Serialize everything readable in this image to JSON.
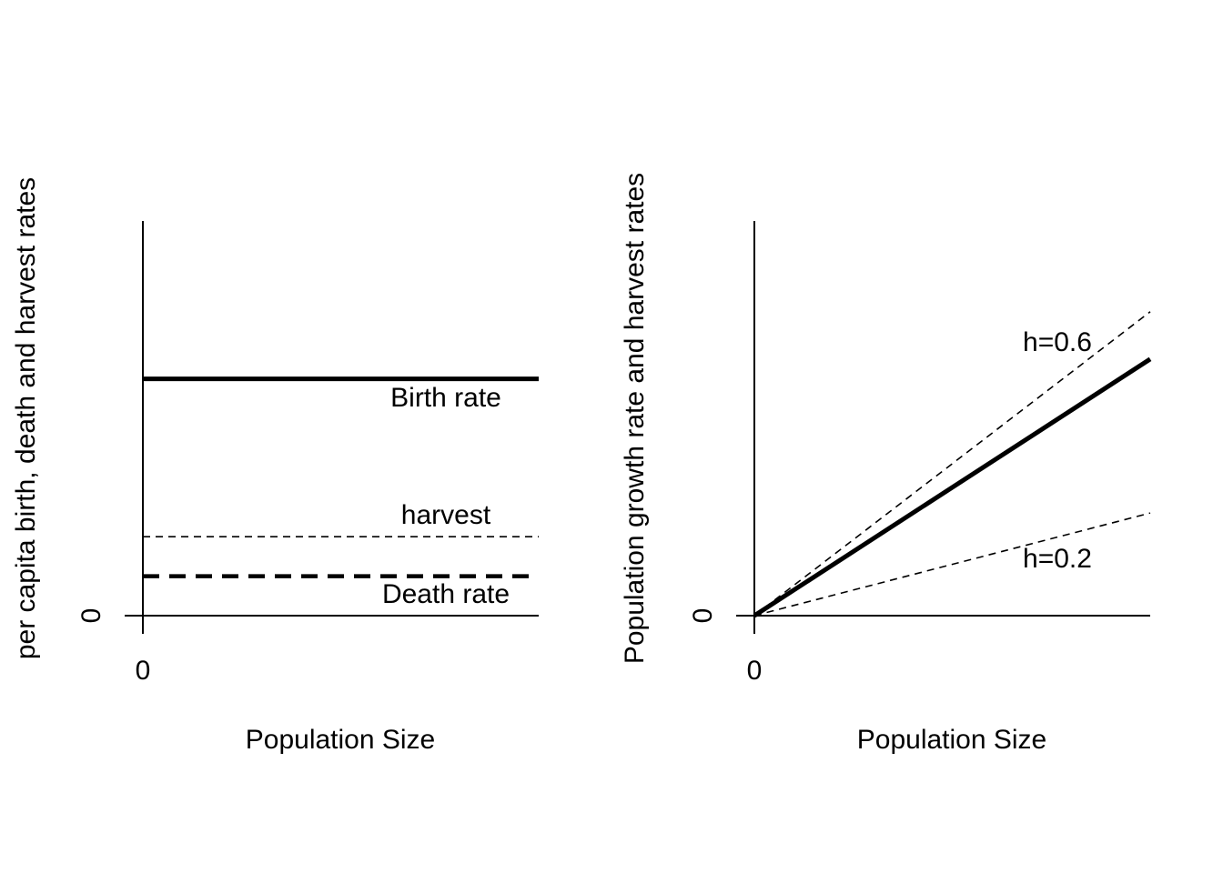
{
  "chart_data": [
    {
      "type": "line",
      "title": "",
      "xlabel": "Population Size",
      "ylabel": "per capita birth, death and harvest rates",
      "xlim": [
        0,
        1
      ],
      "ylim": [
        0,
        1
      ],
      "x_tick_labels": [
        "0"
      ],
      "y_tick_labels": [
        "0"
      ],
      "axes": "left-bottom only, no box",
      "grid": false,
      "series": [
        {
          "label": "Birth rate",
          "x": [
            0,
            1
          ],
          "y": [
            0.6,
            0.6
          ],
          "style": "solid-thick",
          "color": "#000000"
        },
        {
          "label": "harvest",
          "x": [
            0,
            1
          ],
          "y": [
            0.2,
            0.2
          ],
          "style": "dashed-thin",
          "color": "#000000"
        },
        {
          "label": "Death rate",
          "x": [
            0,
            1
          ],
          "y": [
            0.1,
            0.1
          ],
          "style": "dashed-thick",
          "color": "#000000"
        }
      ]
    },
    {
      "type": "line",
      "title": "",
      "xlabel": "Population Size",
      "ylabel": "Population growth rate and harvest rates",
      "xlim": [
        0,
        1
      ],
      "ylim": [
        0,
        1
      ],
      "x_tick_labels": [
        "0"
      ],
      "y_tick_labels": [
        "0"
      ],
      "axes": "left-bottom only, no box",
      "grid": false,
      "series": [
        {
          "label": "",
          "x": [
            0,
            1
          ],
          "y": [
            0,
            0.65
          ],
          "style": "solid-thick",
          "color": "#000000"
        },
        {
          "label": "h=0.6",
          "x": [
            0,
            1
          ],
          "y": [
            0,
            0.77
          ],
          "style": "dashed-thin",
          "color": "#000000"
        },
        {
          "label": "h=0.2",
          "x": [
            0,
            1
          ],
          "y": [
            0,
            0.26
          ],
          "style": "dashed-thin",
          "color": "#000000"
        }
      ]
    }
  ]
}
